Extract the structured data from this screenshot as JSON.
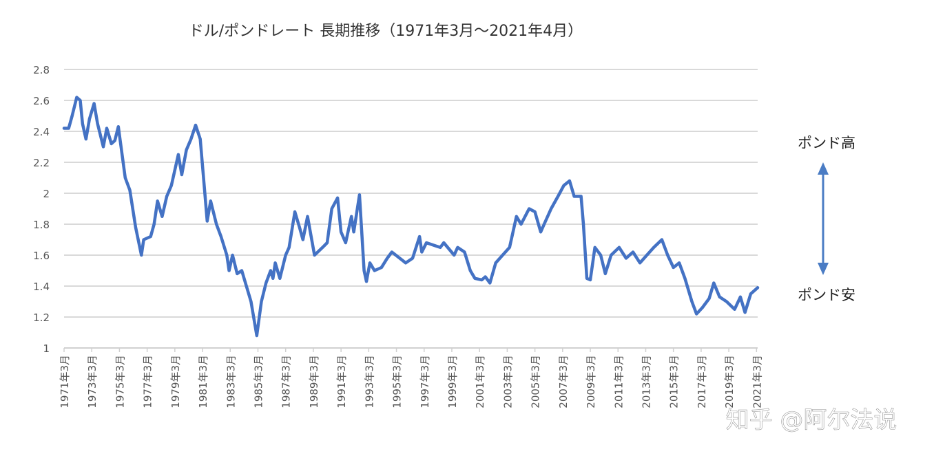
{
  "chart_data": {
    "type": "line",
    "title": "ドル/ポンドレート 長期推移（1971年3月～2021年4月）",
    "xlabel": "",
    "ylabel": "",
    "ylim": [
      1,
      2.8
    ],
    "yticks": [
      "1",
      "1.2",
      "1.4",
      "1.6",
      "1.8",
      "2",
      "2.2",
      "2.4",
      "2.6",
      "2.8"
    ],
    "xlim": [
      "1971-03",
      "2021-04"
    ],
    "xticks": [
      "1971年3月",
      "1973年3月",
      "1975年3月",
      "1977年3月",
      "1979年3月",
      "1981年3月",
      "1983年3月",
      "1985年3月",
      "1987年3月",
      "1989年3月",
      "1991年3月",
      "1993年3月",
      "1995年3月",
      "1997年3月",
      "1999年3月",
      "2001年3月",
      "2003年3月",
      "2005年3月",
      "2007年3月",
      "2009年3月",
      "2011年3月",
      "2013年3月",
      "2015年3月",
      "2017年3月",
      "2019年3月",
      "2021年3月"
    ],
    "grid": true,
    "line_color": "#4472c4",
    "series": [
      {
        "points": [
          [
            "1971-03",
            2.42
          ],
          [
            "1971-07",
            2.42
          ],
          [
            "1971-10",
            2.5
          ],
          [
            "1972-02",
            2.62
          ],
          [
            "1972-05",
            2.6
          ],
          [
            "1972-07",
            2.45
          ],
          [
            "1972-10",
            2.35
          ],
          [
            "1973-01",
            2.48
          ],
          [
            "1973-05",
            2.58
          ],
          [
            "1973-08",
            2.45
          ],
          [
            "1974-01",
            2.3
          ],
          [
            "1974-04",
            2.42
          ],
          [
            "1974-08",
            2.32
          ],
          [
            "1974-11",
            2.34
          ],
          [
            "1975-02",
            2.43
          ],
          [
            "1975-08",
            2.1
          ],
          [
            "1975-12",
            2.02
          ],
          [
            "1976-05",
            1.78
          ],
          [
            "1976-10",
            1.6
          ],
          [
            "1976-12",
            1.7
          ],
          [
            "1977-06",
            1.72
          ],
          [
            "1977-09",
            1.8
          ],
          [
            "1977-12",
            1.95
          ],
          [
            "1978-04",
            1.85
          ],
          [
            "1978-08",
            1.98
          ],
          [
            "1978-12",
            2.05
          ],
          [
            "1979-06",
            2.25
          ],
          [
            "1979-09",
            2.12
          ],
          [
            "1980-01",
            2.28
          ],
          [
            "1980-05",
            2.35
          ],
          [
            "1980-09",
            2.44
          ],
          [
            "1981-01",
            2.35
          ],
          [
            "1981-05",
            2.0
          ],
          [
            "1981-07",
            1.82
          ],
          [
            "1981-10",
            1.95
          ],
          [
            "1982-03",
            1.8
          ],
          [
            "1982-07",
            1.72
          ],
          [
            "1982-12",
            1.6
          ],
          [
            "1983-02",
            1.5
          ],
          [
            "1983-05",
            1.6
          ],
          [
            "1983-09",
            1.48
          ],
          [
            "1984-01",
            1.5
          ],
          [
            "1984-05",
            1.4
          ],
          [
            "1984-09",
            1.3
          ],
          [
            "1985-02",
            1.08
          ],
          [
            "1985-06",
            1.3
          ],
          [
            "1985-10",
            1.42
          ],
          [
            "1986-02",
            1.5
          ],
          [
            "1986-04",
            1.45
          ],
          [
            "1986-06",
            1.55
          ],
          [
            "1986-10",
            1.45
          ],
          [
            "1987-03",
            1.6
          ],
          [
            "1987-06",
            1.65
          ],
          [
            "1987-11",
            1.88
          ],
          [
            "1988-03",
            1.78
          ],
          [
            "1988-06",
            1.7
          ],
          [
            "1988-10",
            1.85
          ],
          [
            "1989-04",
            1.6
          ],
          [
            "1989-11",
            1.65
          ],
          [
            "1990-03",
            1.68
          ],
          [
            "1990-07",
            1.9
          ],
          [
            "1990-12",
            1.97
          ],
          [
            "1991-03",
            1.75
          ],
          [
            "1991-07",
            1.68
          ],
          [
            "1991-12",
            1.85
          ],
          [
            "1992-02",
            1.75
          ],
          [
            "1992-07",
            1.99
          ],
          [
            "1992-11",
            1.5
          ],
          [
            "1993-01",
            1.43
          ],
          [
            "1993-04",
            1.55
          ],
          [
            "1993-08",
            1.5
          ],
          [
            "1994-02",
            1.52
          ],
          [
            "1994-07",
            1.58
          ],
          [
            "1994-11",
            1.62
          ],
          [
            "1995-11",
            1.55
          ],
          [
            "1996-05",
            1.58
          ],
          [
            "1996-11",
            1.72
          ],
          [
            "1997-01",
            1.62
          ],
          [
            "1997-05",
            1.68
          ],
          [
            "1998-05",
            1.65
          ],
          [
            "1998-08",
            1.68
          ],
          [
            "1999-05",
            1.6
          ],
          [
            "1999-08",
            1.65
          ],
          [
            "2000-02",
            1.62
          ],
          [
            "2000-07",
            1.5
          ],
          [
            "2000-11",
            1.45
          ],
          [
            "2001-05",
            1.44
          ],
          [
            "2001-08",
            1.46
          ],
          [
            "2001-12",
            1.42
          ],
          [
            "2002-05",
            1.55
          ],
          [
            "2002-11",
            1.6
          ],
          [
            "2003-05",
            1.65
          ],
          [
            "2003-11",
            1.85
          ],
          [
            "2004-03",
            1.8
          ],
          [
            "2004-10",
            1.9
          ],
          [
            "2005-03",
            1.88
          ],
          [
            "2005-08",
            1.75
          ],
          [
            "2005-11",
            1.8
          ],
          [
            "2006-05",
            1.9
          ],
          [
            "2006-11",
            1.98
          ],
          [
            "2007-04",
            2.05
          ],
          [
            "2007-09",
            2.08
          ],
          [
            "2008-01",
            1.98
          ],
          [
            "2008-07",
            1.98
          ],
          [
            "2008-09",
            1.8
          ],
          [
            "2008-12",
            1.45
          ],
          [
            "2009-03",
            1.44
          ],
          [
            "2009-07",
            1.65
          ],
          [
            "2009-12",
            1.6
          ],
          [
            "2010-04",
            1.48
          ],
          [
            "2010-09",
            1.6
          ],
          [
            "2011-04",
            1.65
          ],
          [
            "2011-10",
            1.58
          ],
          [
            "2012-04",
            1.62
          ],
          [
            "2012-10",
            1.55
          ],
          [
            "2013-04",
            1.6
          ],
          [
            "2013-10",
            1.65
          ],
          [
            "2014-05",
            1.7
          ],
          [
            "2014-10",
            1.6
          ],
          [
            "2015-03",
            1.52
          ],
          [
            "2015-08",
            1.55
          ],
          [
            "2016-01",
            1.45
          ],
          [
            "2016-07",
            1.3
          ],
          [
            "2016-11",
            1.22
          ],
          [
            "2017-04",
            1.26
          ],
          [
            "2017-10",
            1.32
          ],
          [
            "2018-02",
            1.42
          ],
          [
            "2018-07",
            1.33
          ],
          [
            "2019-01",
            1.3
          ],
          [
            "2019-08",
            1.25
          ],
          [
            "2020-01",
            1.33
          ],
          [
            "2020-05",
            1.23
          ],
          [
            "2020-10",
            1.35
          ],
          [
            "2021-04",
            1.39
          ]
        ]
      }
    ],
    "annotations": {
      "high_label": "ポンド高",
      "low_label": "ポンド安",
      "arrow_color": "#4a7cc4"
    }
  },
  "watermark": "知乎 @阿尔法说"
}
